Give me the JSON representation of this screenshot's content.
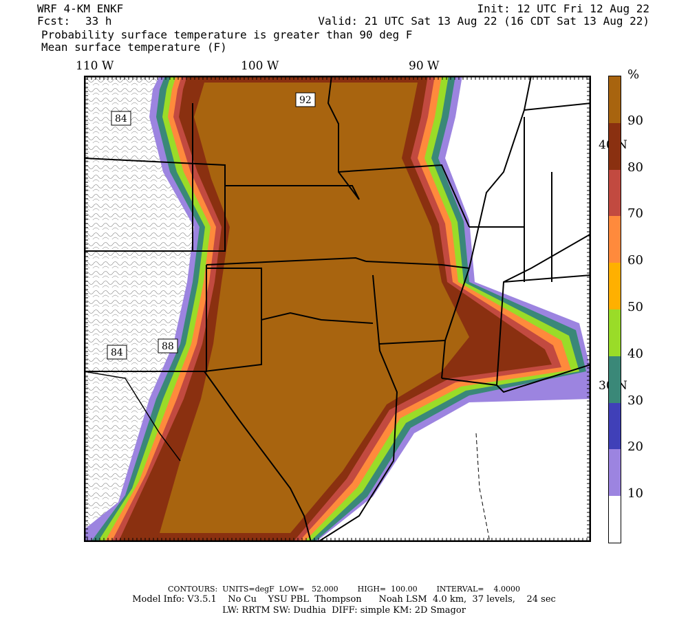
{
  "header": {
    "model": "WRF 4-KM ENKF",
    "fcst_label": "Fcst:",
    "fcst_value": "33 h",
    "init": "Init: 12 UTC Fri 12 Aug 22",
    "valid": "Valid: 21 UTC Sat 13 Aug 22 (16 CDT Sat 13 Aug 22)",
    "field1": "Probability surface temperature is greater than 90 deg F",
    "field2": "Mean surface temperature (F)"
  },
  "axes": {
    "lon_labels": [
      "110 W",
      "100 W",
      "90 W"
    ],
    "lat_labels": [
      "40 N",
      "30 N"
    ]
  },
  "contour_labels": [
    "84",
    "92",
    "84",
    "88"
  ],
  "colorbar": {
    "unit": "%",
    "levels": [
      "90",
      "80",
      "70",
      "60",
      "50",
      "40",
      "30",
      "20",
      "10"
    ],
    "colors": [
      "#a8640f",
      "#8a3010",
      "#c24a40",
      "#ff8a3c",
      "#ffb000",
      "#9adc28",
      "#3a8878",
      "#4040b8",
      "#9c84e0",
      "#ffffff"
    ]
  },
  "footer": {
    "line1": "CONTOURS:  UNITS=degF  LOW=   52.000        HIGH=  100.00        INTERVAL=    4.0000",
    "line2": "Model Info: V3.5.1    No Cu    YSU PBL  Thompson      Noah LSM  4.0 km,  37 levels,    24 sec",
    "line3": "LW: RRTM SW: Dudhia  DIFF: simple KM: 2D Smagor"
  }
}
